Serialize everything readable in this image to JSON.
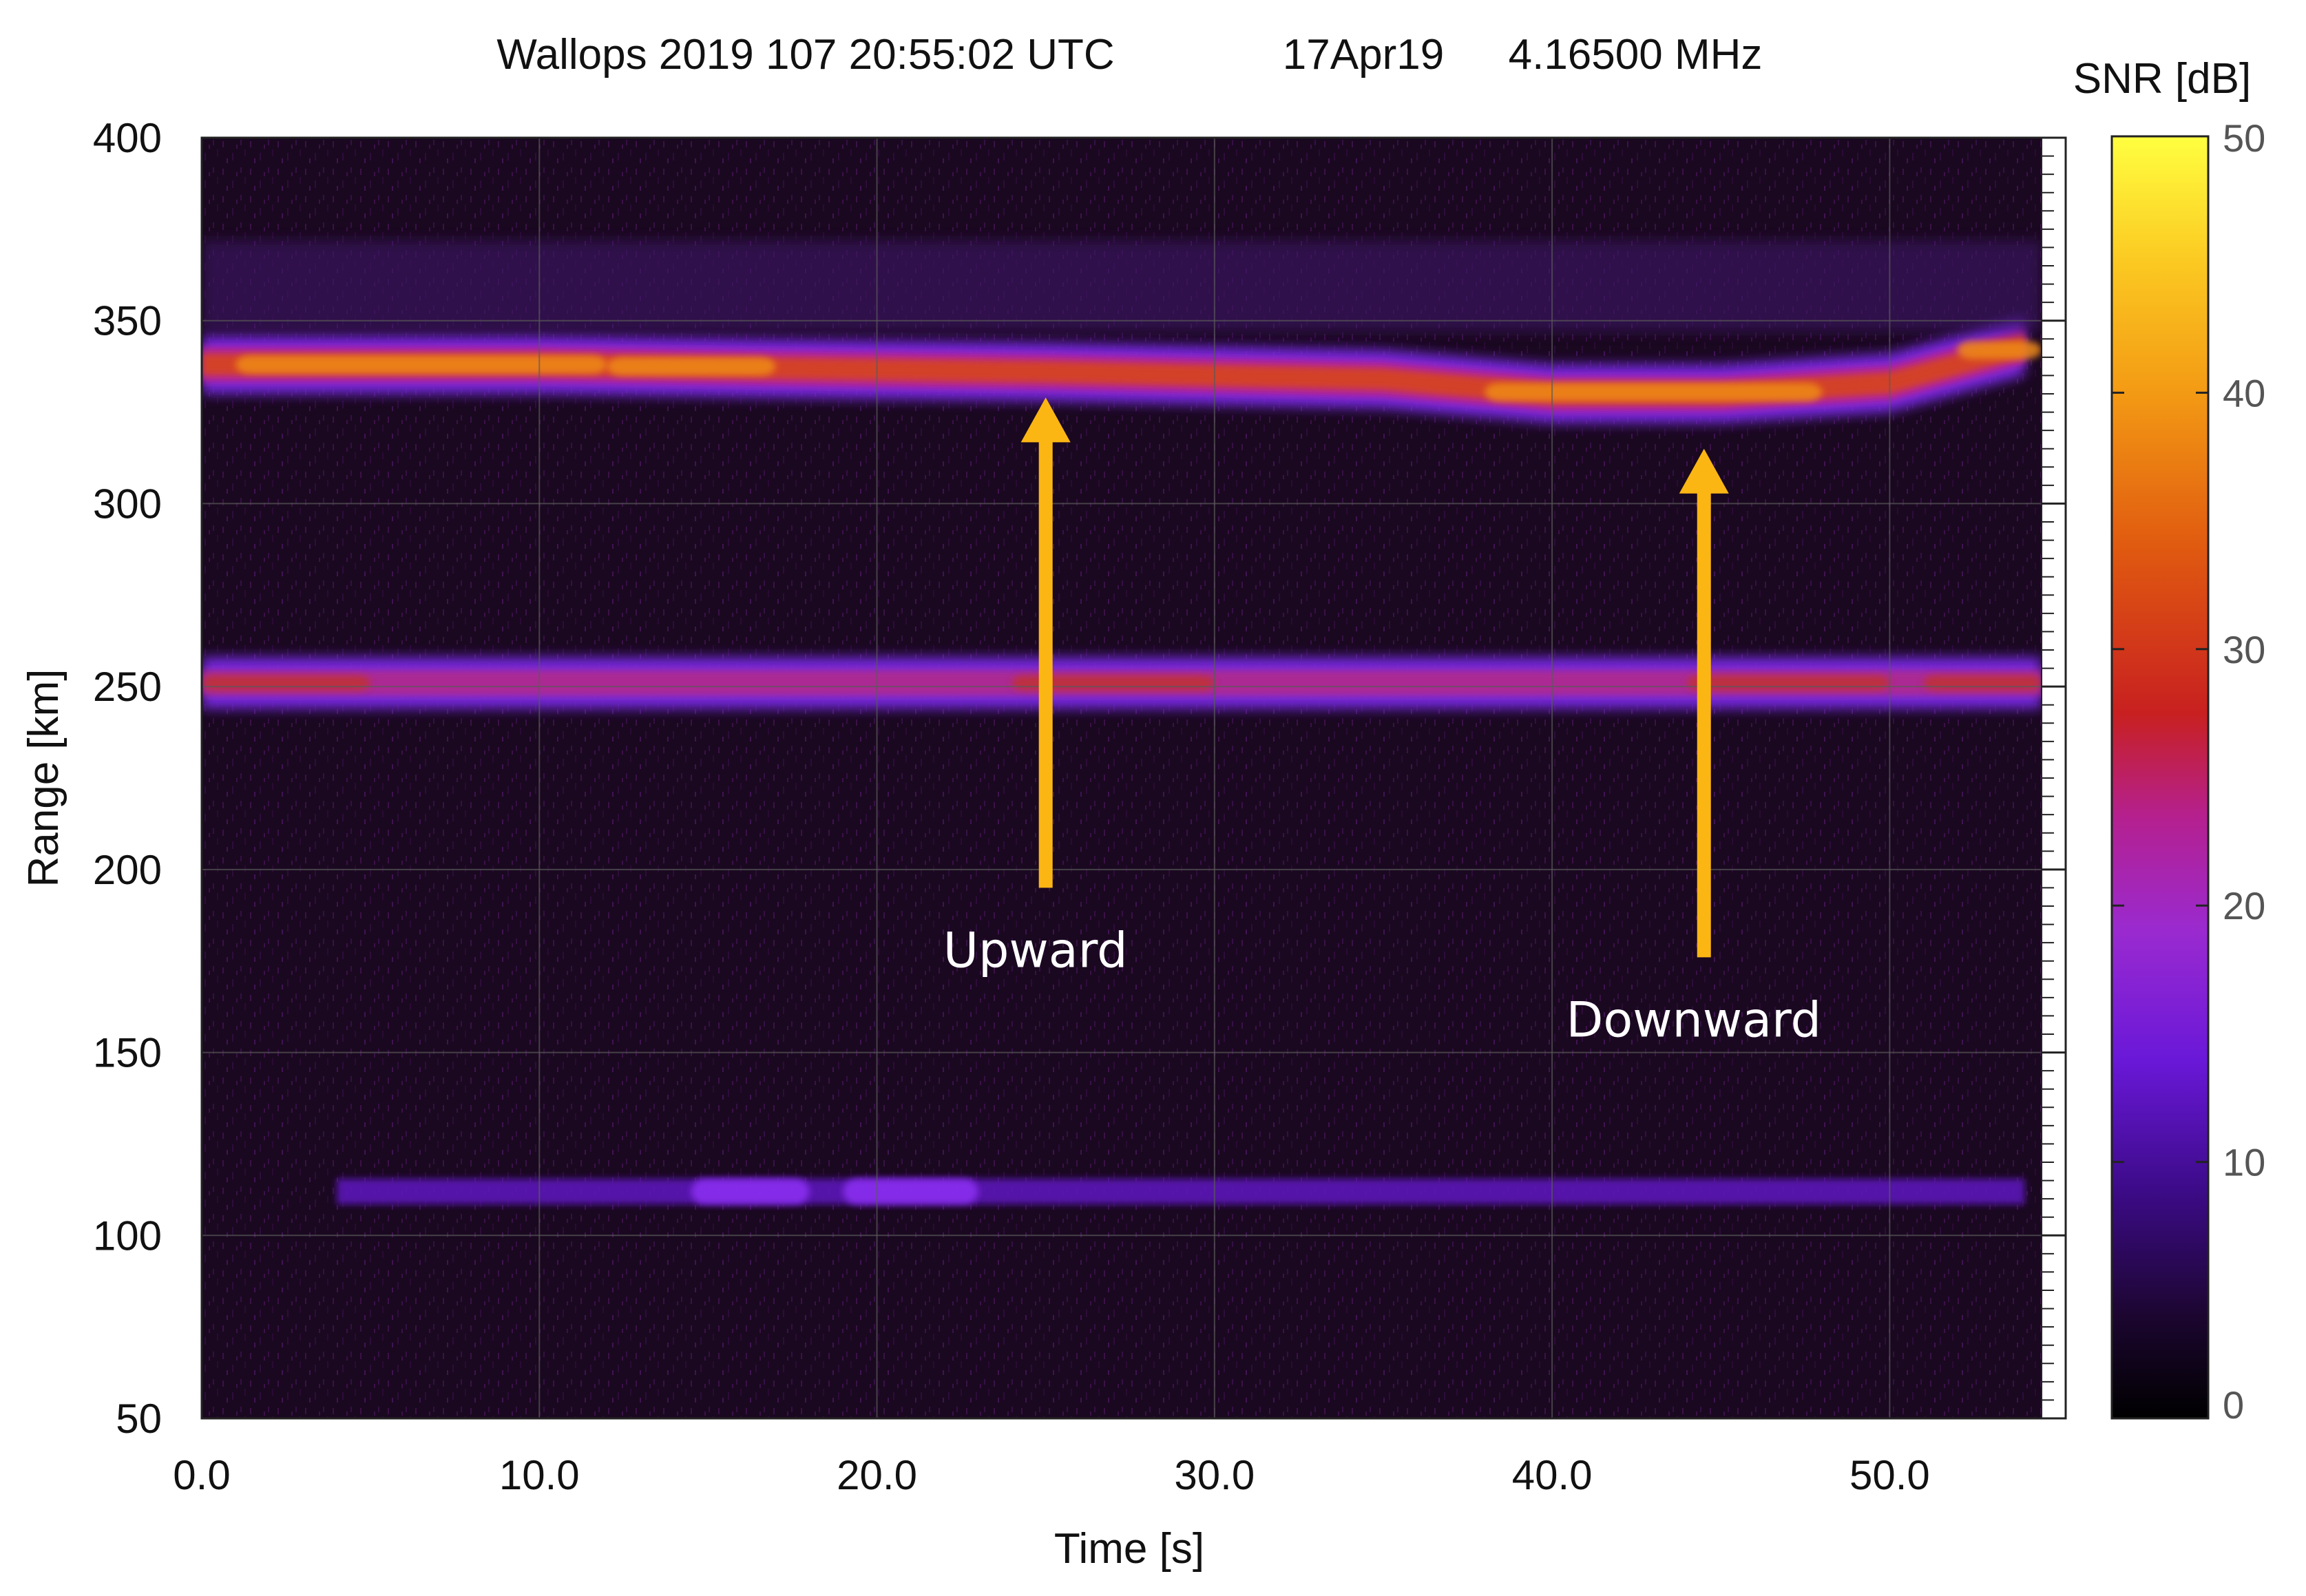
{
  "chart_data": {
    "type": "heatmap",
    "title": "Wallops 2019 107 20:55:02 UTC",
    "subtitle_date": "17Apr19",
    "subtitle_freq": "4.16500 MHz",
    "xlabel": "Time [s]",
    "ylabel": "Range [km]",
    "xlim": [
      0,
      54.5
    ],
    "ylim": [
      50,
      400
    ],
    "x_ticks": [
      "0.0",
      "10.0",
      "20.0",
      "30.0",
      "40.0",
      "50.0"
    ],
    "y_ticks": [
      "50",
      "100",
      "150",
      "200",
      "250",
      "300",
      "350",
      "400"
    ],
    "grid": true,
    "colorbar": {
      "label": "SNR [dB]",
      "range": [
        0,
        50
      ],
      "ticks": [
        "0",
        "10",
        "20",
        "30",
        "40",
        "50"
      ],
      "colors": [
        "#000000",
        "#2b0a3d",
        "#5b13a6",
        "#8a2be2",
        "#b01f9e",
        "#c4201f",
        "#d94a12",
        "#f08a10",
        "#fbbf1a",
        "#ffff33"
      ]
    },
    "layers": [
      {
        "name": "upper_echo",
        "range_center_km": [
          338,
          338,
          337,
          336,
          335,
          334,
          330,
          330,
          333,
          343
        ],
        "time_s": [
          0,
          10,
          17,
          25,
          30,
          35,
          40,
          45,
          50,
          54
        ],
        "peak_snr_db": 38
      },
      {
        "name": "middle_echo",
        "range_center_km": 251,
        "time_s_span": [
          0,
          54
        ],
        "peak_snr_db": 28
      },
      {
        "name": "lower_echo",
        "range_center_km": 112,
        "time_s_span": [
          4,
          54
        ],
        "peak_snr_db": 12
      }
    ],
    "annotations": [
      {
        "text": "Upward",
        "arrow_tip_time_s": 25,
        "arrow_tip_range_km": 329,
        "arrow_base_range_km": 195,
        "color": "#fbb614"
      },
      {
        "text": "Downward",
        "arrow_tip_time_s": 44.5,
        "arrow_tip_range_km": 315,
        "arrow_base_range_km": 176,
        "color": "#fbb614"
      }
    ]
  }
}
